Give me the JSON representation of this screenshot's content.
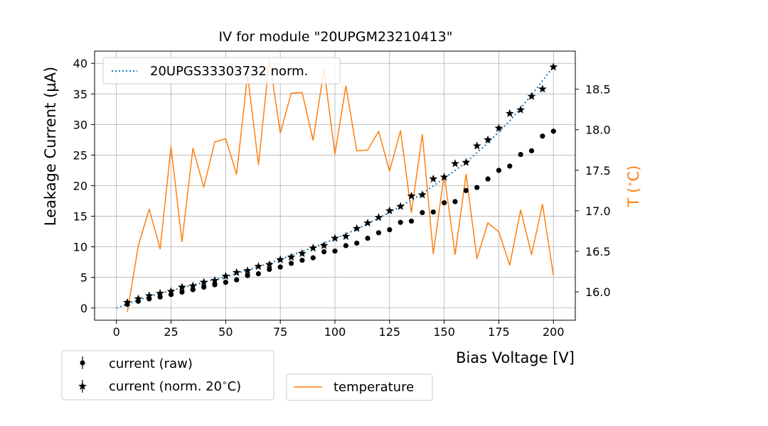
{
  "chart_data": {
    "type": "scatter",
    "title": "IV for module \"20UPGM23210413\"",
    "xlabel": "Bias Voltage [V]",
    "ylabel": "Leakage Current (µA)",
    "y2label": "T ($^\\circ$C)",
    "y2label_parts": {
      "t": "T (",
      "sup": "∘",
      "c": "C)"
    },
    "xlim": [
      -10,
      210
    ],
    "ylim": [
      -2,
      42
    ],
    "y2lim": [
      15.65,
      18.97
    ],
    "grid": true,
    "x_ticks": [
      0,
      25,
      50,
      75,
      100,
      125,
      150,
      175,
      200
    ],
    "y_ticks": [
      0,
      5,
      10,
      15,
      20,
      25,
      30,
      35,
      40
    ],
    "y2_ticks": [
      16.0,
      16.5,
      17.0,
      17.5,
      18.0,
      18.5
    ],
    "y2_tick_labels": [
      "16.0",
      "16.5",
      "17.0",
      "17.5",
      "18.0",
      "18.5"
    ],
    "series": [
      {
        "name": "current (raw)",
        "axis": "left",
        "marker": "circle",
        "color": "#000000",
        "x": [
          5,
          10,
          15,
          20,
          25,
          30,
          35,
          40,
          45,
          50,
          55,
          60,
          65,
          70,
          75,
          80,
          85,
          90,
          95,
          100,
          105,
          110,
          115,
          120,
          125,
          130,
          135,
          140,
          145,
          150,
          155,
          160,
          165,
          170,
          175,
          180,
          185,
          190,
          195,
          200
        ],
        "y": [
          0.6,
          1.1,
          1.5,
          1.8,
          2.2,
          2.6,
          3.0,
          3.4,
          3.8,
          4.2,
          4.6,
          5.3,
          5.6,
          6.3,
          6.7,
          7.3,
          7.8,
          8.2,
          9.2,
          9.3,
          10.2,
          10.6,
          11.4,
          12.3,
          12.8,
          14.0,
          14.2,
          15.6,
          15.7,
          17.2,
          17.4,
          19.2,
          19.7,
          21.1,
          22.5,
          23.2,
          25.1,
          25.7,
          28.1,
          28.9
        ]
      },
      {
        "name": "current (norm. 20∘C)",
        "axis": "left",
        "marker": "star",
        "color": "#000000",
        "x": [
          5,
          10,
          15,
          20,
          25,
          30,
          35,
          40,
          45,
          50,
          55,
          60,
          65,
          70,
          75,
          80,
          85,
          90,
          95,
          100,
          105,
          110,
          115,
          120,
          125,
          130,
          135,
          140,
          145,
          150,
          155,
          160,
          165,
          170,
          175,
          180,
          185,
          190,
          195,
          200
        ],
        "y": [
          0.9,
          1.5,
          2.0,
          2.4,
          2.7,
          3.4,
          3.6,
          4.2,
          4.5,
          5.2,
          5.8,
          6.1,
          6.8,
          7.1,
          7.9,
          8.3,
          8.9,
          9.8,
          10.2,
          11.4,
          11.7,
          13.0,
          13.9,
          14.8,
          15.9,
          16.6,
          18.3,
          18.5,
          21.1,
          21.4,
          23.6,
          23.8,
          26.5,
          27.5,
          29.4,
          31.8,
          32.4,
          34.6,
          35.8,
          39.4
        ]
      },
      {
        "name": "20UPGS33303732 norm.",
        "axis": "left",
        "line": "dotted",
        "color": "#1f77b4",
        "x": [
          0,
          10,
          20,
          30,
          40,
          50,
          60,
          70,
          80,
          90,
          100,
          110,
          120,
          130,
          140,
          150,
          160,
          170,
          180,
          190,
          200
        ],
        "y": [
          0.0,
          1.3,
          2.4,
          3.3,
          4.2,
          5.1,
          6.2,
          7.3,
          8.6,
          9.9,
          11.3,
          12.9,
          14.7,
          16.6,
          18.7,
          21.2,
          23.8,
          27.0,
          30.6,
          34.8,
          39.5
        ]
      },
      {
        "name": "temperature",
        "axis": "right",
        "line": "solid",
        "color": "#ff7f0e",
        "x": [
          5,
          10,
          15,
          20,
          25,
          30,
          35,
          40,
          45,
          50,
          55,
          60,
          65,
          70,
          75,
          80,
          85,
          90,
          95,
          100,
          105,
          110,
          115,
          120,
          125,
          130,
          135,
          140,
          145,
          150,
          155,
          160,
          165,
          170,
          175,
          180,
          185,
          190,
          195,
          200
        ],
        "y": [
          15.75,
          16.57,
          17.02,
          16.53,
          17.79,
          16.62,
          17.77,
          17.29,
          17.85,
          17.89,
          17.45,
          18.68,
          17.57,
          18.87,
          17.96,
          18.45,
          18.46,
          17.87,
          18.74,
          17.7,
          18.54,
          17.74,
          17.75,
          17.98,
          17.49,
          17.99,
          16.98,
          17.94,
          16.47,
          17.45,
          16.46,
          17.45,
          16.41,
          16.85,
          16.74,
          16.33,
          17.01,
          16.46,
          17.08,
          16.2
        ]
      }
    ],
    "legends": {
      "top_left": [
        {
          "label": "20UPGS33303732 norm.",
          "style": "dotted",
          "color": "#1f77b4"
        }
      ],
      "bottom_left": [
        {
          "label": "current (raw)",
          "marker": "circle"
        },
        {
          "label": "current (norm. 20∘C)",
          "label_parts": {
            "a": "current (norm. 20",
            "sup": "∘",
            "b": "C)"
          },
          "marker": "star"
        }
      ],
      "bottom_right": [
        {
          "label": "temperature",
          "style": "solid",
          "color": "#ff7f0e"
        }
      ]
    }
  }
}
